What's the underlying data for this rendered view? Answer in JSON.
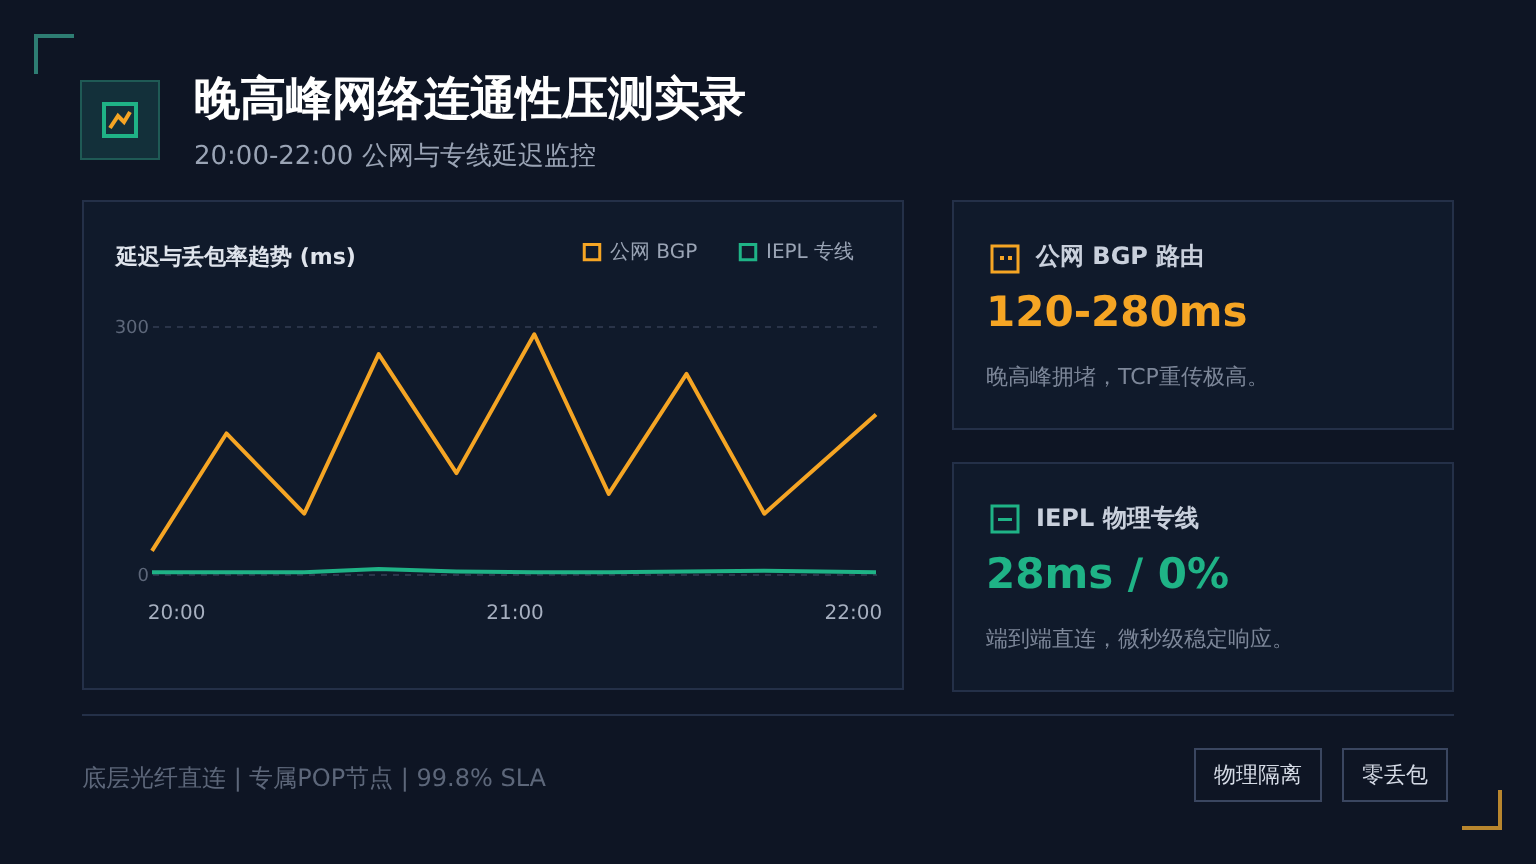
{
  "chart_data": [
    {
      "type": "other",
      "title": "晚高峰网络连通性压测实录",
      "subtitle": "20:00-22:00 公网与专线延迟监控"
    },
    {
      "type": "line",
      "title": "延迟与丢包率趋势 (ms)",
      "xlim": [
        19.93,
        22.07
      ],
      "xticks": [
        {
          "value": 20,
          "label": "20:00"
        },
        {
          "value": 21,
          "label": "21:00"
        },
        {
          "value": 22,
          "label": "22:00"
        }
      ],
      "ylim": [
        0,
        300
      ],
      "yticks": [
        0,
        300
      ],
      "grid": "y",
      "legend": "top right",
      "line_style": "solid",
      "series": [
        {
          "name": "公网 BGP",
          "color": "#f5a524",
          "x": [
            19.93,
            20.15,
            20.38,
            20.6,
            20.83,
            21.06,
            21.28,
            21.51,
            21.74,
            22.07
          ],
          "values": [
            28,
            170,
            73,
            266,
            122,
            290,
            97,
            242,
            73,
            193
          ]
        },
        {
          "name": "IEPL 专线",
          "color": "#1fb386",
          "x": [
            19.93,
            20.15,
            20.38,
            20.6,
            20.83,
            21.06,
            21.28,
            21.51,
            21.74,
            22.07
          ],
          "values": [
            2,
            2,
            2,
            6,
            3,
            2,
            2,
            3,
            4,
            2
          ]
        }
      ]
    },
    {
      "type": "other",
      "title": "公网 BGP 路由",
      "subtitle": "120-280ms",
      "annotations": [
        "晚高峰拥堵，TCP重传极高。"
      ]
    },
    {
      "type": "other",
      "title": "IEPL 物理专线",
      "subtitle": "28ms / 0%",
      "annotations": [
        "端到端直连，微秒级稳定响应。"
      ]
    },
    {
      "type": "other",
      "annotations": [
        "底层光纤直连 | 专属POP节点 | 99.8% SLA",
        "物理隔离",
        "零丢包"
      ]
    }
  ]
}
